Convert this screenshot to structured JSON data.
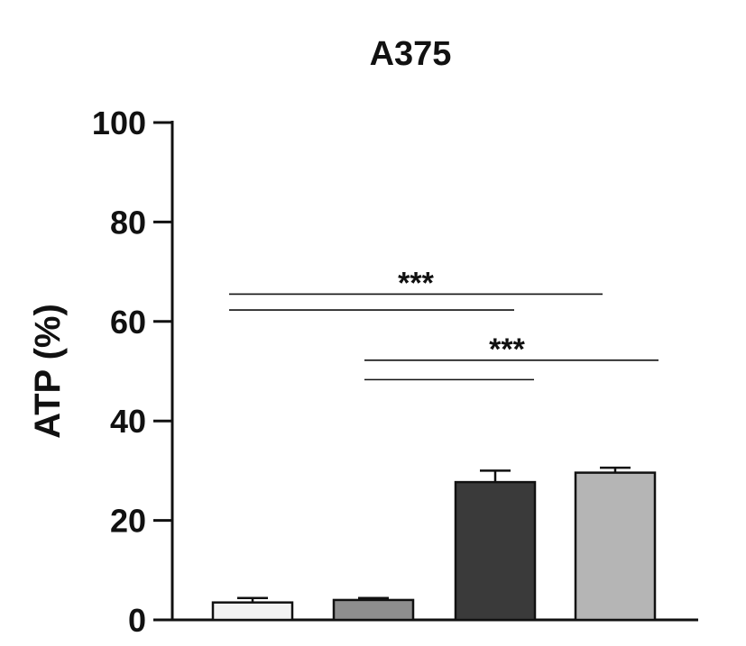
{
  "chart_data": {
    "type": "bar",
    "title": "A375",
    "ylabel": "ATP (%)",
    "xlabel": "",
    "ylim": [
      0,
      100
    ],
    "yticks": [
      "0",
      "20",
      "40",
      "60",
      "80",
      "100"
    ],
    "ytick_values": [
      0,
      20,
      40,
      60,
      80,
      100
    ],
    "grid": false,
    "legend": "none",
    "bars": [
      {
        "value": 3.5,
        "error": 0.9,
        "color": "#f2f2f2"
      },
      {
        "value": 4.0,
        "error": 0.4,
        "color": "#8e8e8e"
      },
      {
        "value": 27.7,
        "error": 2.3,
        "color": "#3a3a3a"
      },
      {
        "value": 29.6,
        "error": 1.0,
        "color": "#b5b5b5"
      }
    ],
    "significance": [
      {
        "label": "***",
        "lines": [
          {
            "from_bar": 0,
            "to_bar": 3,
            "y": 65.5
          },
          {
            "from_bar": 0,
            "to_bar": 2,
            "y": 62.3
          }
        ]
      },
      {
        "label": "***",
        "lines": [
          {
            "from_bar": 1,
            "to_bar": 3,
            "y": 52.2
          },
          {
            "from_bar": 1,
            "to_bar": 2,
            "y": 48.3
          }
        ]
      }
    ]
  }
}
